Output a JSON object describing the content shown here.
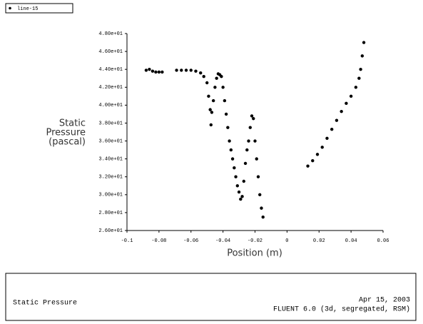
{
  "chart_data": {
    "type": "scatter",
    "ylabel": [
      "Static",
      "Pressure",
      "(pascal)"
    ],
    "xlabel": "Position (m)",
    "series": [
      {
        "name": "line-15",
        "color": "#000000",
        "x": [
          -0.088,
          -0.086,
          -0.084,
          -0.082,
          -0.08,
          -0.078,
          -0.069,
          -0.066,
          -0.063,
          -0.06,
          -0.057,
          -0.054,
          -0.052,
          -0.05,
          -0.049,
          -0.048,
          -0.0475,
          -0.047,
          -0.046,
          -0.045,
          -0.044,
          -0.043,
          -0.042,
          -0.041,
          -0.04,
          -0.039,
          -0.038,
          -0.037,
          -0.036,
          -0.035,
          -0.034,
          -0.033,
          -0.032,
          -0.031,
          -0.03,
          -0.029,
          -0.028,
          -0.027,
          -0.026,
          -0.025,
          -0.024,
          -0.023,
          -0.022,
          -0.021,
          -0.02,
          -0.019,
          -0.018,
          -0.017,
          -0.016,
          -0.015,
          0.013,
          0.016,
          0.019,
          0.022,
          0.025,
          0.028,
          0.031,
          0.034,
          0.037,
          0.04,
          0.043,
          0.045,
          0.046,
          0.047,
          0.048
        ],
        "values": [
          43.9,
          44.0,
          43.8,
          43.7,
          43.7,
          43.7,
          43.9,
          43.9,
          43.9,
          43.9,
          43.8,
          43.6,
          43.2,
          42.5,
          41.0,
          39.5,
          37.8,
          39.2,
          40.5,
          42.0,
          43.0,
          43.5,
          43.4,
          43.2,
          42.0,
          40.5,
          39.0,
          37.5,
          36.0,
          35.0,
          34.0,
          33.0,
          32.0,
          31.0,
          30.3,
          29.5,
          29.8,
          31.5,
          33.5,
          35.0,
          36.0,
          37.5,
          38.8,
          38.5,
          36.0,
          34.0,
          32.0,
          30.0,
          28.5,
          27.5,
          33.2,
          33.8,
          34.5,
          35.3,
          36.3,
          37.3,
          38.3,
          39.3,
          40.2,
          41.0,
          42.0,
          43.0,
          44.0,
          45.5,
          47.0
        ]
      }
    ],
    "xlim": [
      -0.1,
      0.06
    ],
    "xticks": [
      -0.1,
      -0.08,
      -0.06,
      -0.04,
      -0.02,
      0,
      0.02,
      0.04,
      0.06
    ],
    "ylim": [
      26,
      48
    ],
    "yticks": [
      {
        "value": 26,
        "label": "2.60e+01"
      },
      {
        "value": 28,
        "label": "2.80e+01"
      },
      {
        "value": 30,
        "label": "3.00e+01"
      },
      {
        "value": 32,
        "label": "3.20e+01"
      },
      {
        "value": 34,
        "label": "3.40e+01"
      },
      {
        "value": 36,
        "label": "3.60e+01"
      },
      {
        "value": 38,
        "label": "3.80e+01"
      },
      {
        "value": 40,
        "label": "4.00e+01"
      },
      {
        "value": 42,
        "label": "4.20e+01"
      },
      {
        "value": 44,
        "label": "4.40e+01"
      },
      {
        "value": 46,
        "label": "4.60e+01"
      },
      {
        "value": 48,
        "label": "4.80e+01"
      }
    ],
    "grid": false,
    "legend": "top-left"
  },
  "footer": {
    "left": "Static Pressure",
    "date": "Apr 15, 2003",
    "solver": "FLUENT 6.0 (3d, segregated, RSM)"
  }
}
